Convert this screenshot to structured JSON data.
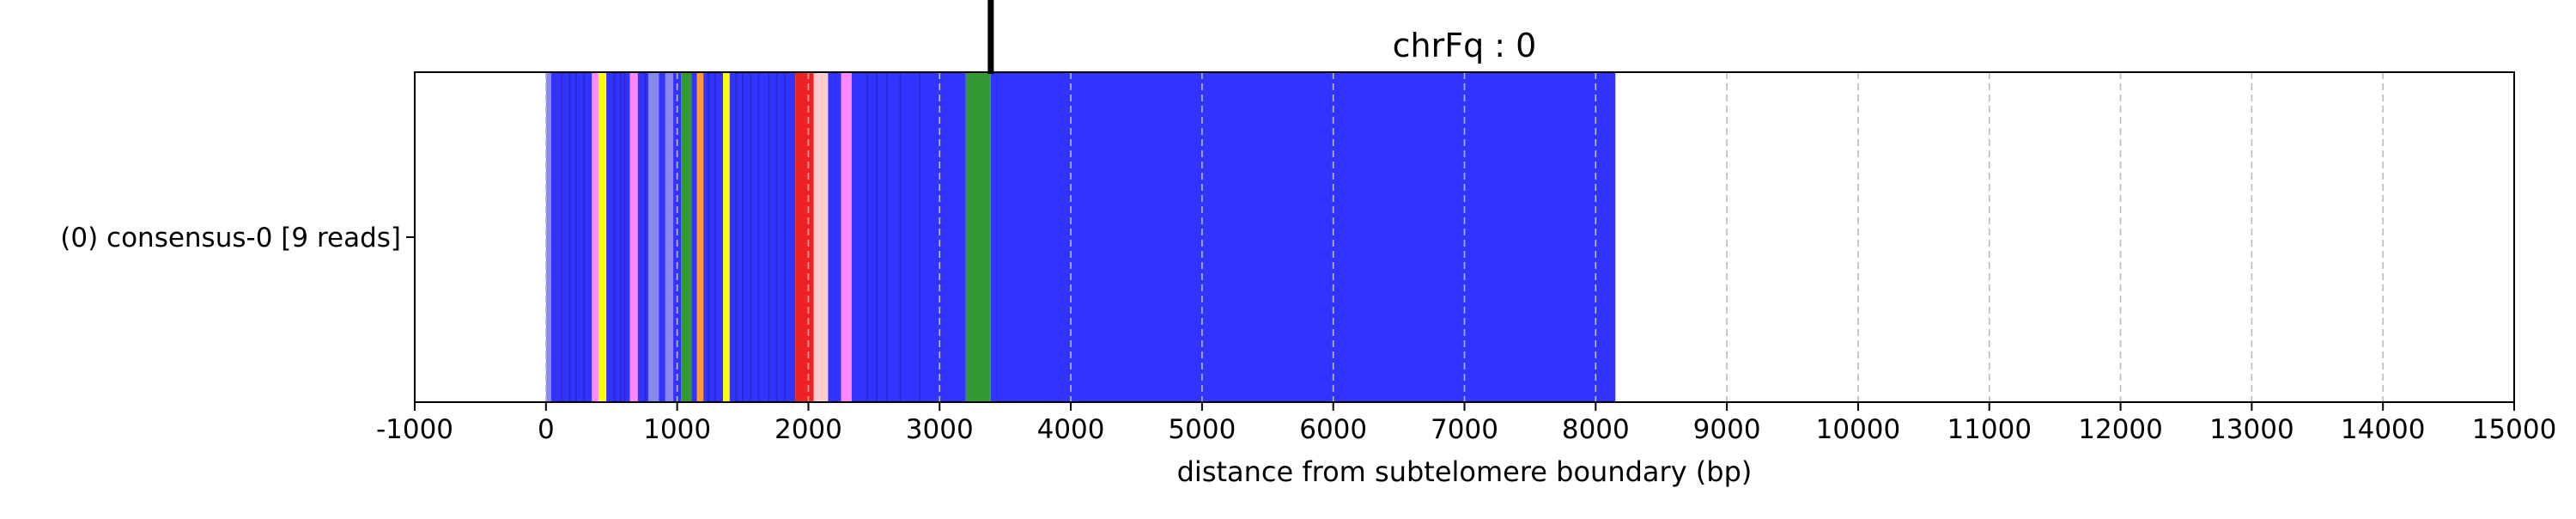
{
  "chart_data": {
    "type": "bar",
    "title": "chrFq : 0",
    "xlabel": "distance from subtelomere boundary (bp)",
    "ylabel": "",
    "xlim": [
      -1000,
      15000
    ],
    "xticks": [
      -1000,
      0,
      1000,
      2000,
      3000,
      4000,
      5000,
      6000,
      7000,
      8000,
      9000,
      10000,
      11000,
      12000,
      13000,
      14000,
      15000
    ],
    "xtick_labels": [
      "-1000",
      "0",
      "1000",
      "2000",
      "3000",
      "4000",
      "5000",
      "6000",
      "7000",
      "8000",
      "9000",
      "10000",
      "11000",
      "12000",
      "13000",
      "14000",
      "15000"
    ],
    "grid": "x-dashed",
    "rows": [
      {
        "label": "(0) consensus-0 [9 reads]"
      }
    ],
    "marker_line_x": 3390,
    "colors": {
      "blue": "#3333ff",
      "lightblue": "#8888ee",
      "yellow": "#ffff00",
      "pink": "#ff88ff",
      "green": "#339933",
      "orange": "#ff9933",
      "red": "#ee2222",
      "lightpink": "#ffcccc"
    },
    "segments": [
      {
        "start": 0,
        "end": 40,
        "color": "lightblue"
      },
      {
        "start": 40,
        "end": 350,
        "color": "blue"
      },
      {
        "start": 350,
        "end": 400,
        "color": "pink"
      },
      {
        "start": 400,
        "end": 460,
        "color": "yellow"
      },
      {
        "start": 460,
        "end": 640,
        "color": "blue"
      },
      {
        "start": 640,
        "end": 700,
        "color": "pink"
      },
      {
        "start": 700,
        "end": 780,
        "color": "blue"
      },
      {
        "start": 780,
        "end": 860,
        "color": "lightblue"
      },
      {
        "start": 860,
        "end": 910,
        "color": "blue"
      },
      {
        "start": 910,
        "end": 970,
        "color": "lightblue"
      },
      {
        "start": 970,
        "end": 1030,
        "color": "blue"
      },
      {
        "start": 1030,
        "end": 1110,
        "color": "green"
      },
      {
        "start": 1110,
        "end": 1150,
        "color": "blue"
      },
      {
        "start": 1150,
        "end": 1200,
        "color": "orange"
      },
      {
        "start": 1200,
        "end": 1350,
        "color": "blue"
      },
      {
        "start": 1350,
        "end": 1400,
        "color": "yellow"
      },
      {
        "start": 1400,
        "end": 1900,
        "color": "blue"
      },
      {
        "start": 1900,
        "end": 2040,
        "color": "red"
      },
      {
        "start": 2040,
        "end": 2150,
        "color": "lightpink"
      },
      {
        "start": 2150,
        "end": 2250,
        "color": "blue"
      },
      {
        "start": 2250,
        "end": 2330,
        "color": "pink"
      },
      {
        "start": 2330,
        "end": 3200,
        "color": "blue"
      },
      {
        "start": 3200,
        "end": 3390,
        "color": "green"
      },
      {
        "start": 3390,
        "end": 8150,
        "color": "blue"
      }
    ]
  }
}
